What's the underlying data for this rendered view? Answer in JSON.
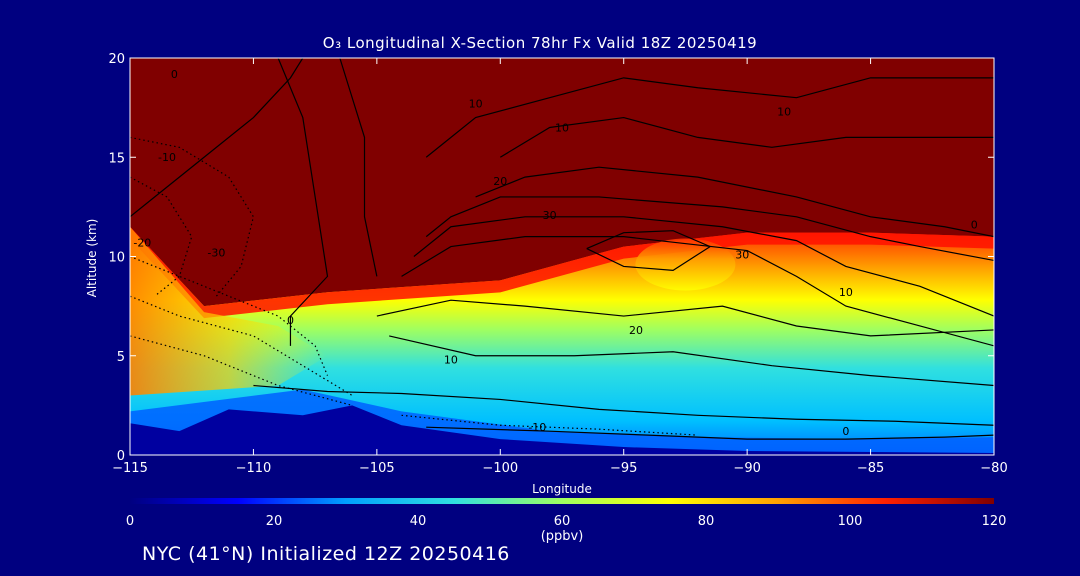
{
  "title": "O₃ Longitudinal X-Section 78hr  Fx Valid 18Z 20250419",
  "footer": "NYC (41°N) Initialized 12Z 20250416",
  "colorbar": {
    "unit": "(ppbv)",
    "ticks": [
      0,
      20,
      40,
      60,
      80,
      100,
      120
    ],
    "stops": [
      "#000080",
      "#0000ff",
      "#00a0ff",
      "#30e0e0",
      "#a0ff60",
      "#ffff00",
      "#ffa000",
      "#ff2000",
      "#800000"
    ]
  },
  "chart_data": {
    "type": "heatmap",
    "title": "O₃ Longitudinal X-Section 78hr  Fx Valid 18Z 20250419",
    "xlabel": "Longitude",
    "ylabel": "Altitude (km)",
    "xlim": [
      -115,
      -80
    ],
    "ylim": [
      0,
      20
    ],
    "x_ticks": [
      -115,
      -110,
      -105,
      -100,
      -95,
      -90,
      -85,
      -80
    ],
    "y_ticks": [
      0,
      5,
      10,
      15,
      20
    ],
    "value_range": [
      0,
      120
    ],
    "colorbar_label": "(ppbv)",
    "contour_labels": [
      "0",
      "10",
      "20",
      "30",
      "-10",
      "-20",
      "-30"
    ],
    "profile": {
      "description_free_field_values": true,
      "stratosphere_ozone_above_km": [
        {
          "lon": -115,
          "km": 11.5
        },
        {
          "lon": -112,
          "km": 7.5
        },
        {
          "lon": -107,
          "km": 8.2
        },
        {
          "lon": -100,
          "km": 8.8
        },
        {
          "lon": -95,
          "km": 10.5
        },
        {
          "lon": -90,
          "km": 11.2
        },
        {
          "lon": -85,
          "km": 11.2
        },
        {
          "lon": -80,
          "km": 11.0
        }
      ],
      "terrain_km": [
        {
          "lon": -115,
          "km": 1.6
        },
        {
          "lon": -113,
          "km": 1.2
        },
        {
          "lon": -111,
          "km": 2.3
        },
        {
          "lon": -108,
          "km": 2.0
        },
        {
          "lon": -106,
          "km": 2.5
        },
        {
          "lon": -104,
          "km": 1.5
        },
        {
          "lon": -100,
          "km": 0.8
        },
        {
          "lon": -95,
          "km": 0.4
        },
        {
          "lon": -90,
          "km": 0.2
        },
        {
          "lon": -80,
          "km": 0.1
        }
      ]
    }
  }
}
